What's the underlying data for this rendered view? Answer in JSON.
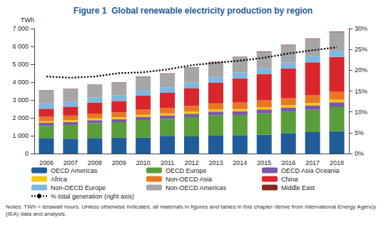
{
  "chart_data": {
    "type": "bar",
    "stacked": true,
    "title": "Figure 1  Global renewable electricity production by region",
    "y_label": "TWh",
    "notes": "Notes: TWh = terawatt hours. Unless otherwise indicated, all materials in figures and tables in this chapter derive from International Energy Agency (IEA) data and analysis.",
    "categories": [
      "2006",
      "2007",
      "2008",
      "2009",
      "2010",
      "2011",
      "2012",
      "2013",
      "2014",
      "2015",
      "2016",
      "2017",
      "2018"
    ],
    "series": [
      {
        "name": "OECD Americas",
        "color": "#1f5c99",
        "values": [
          870,
          830,
          870,
          900,
          890,
          990,
          960,
          1000,
          1030,
          1050,
          1150,
          1200,
          1250
        ]
      },
      {
        "name": "OECD Europe",
        "color": "#5a9e3a",
        "values": [
          680,
          770,
          830,
          860,
          990,
          960,
          1080,
          1150,
          1130,
          1200,
          1200,
          1250,
          1350
        ]
      },
      {
        "name": "OECD Asia Oceania",
        "color": "#7a5aa6",
        "values": [
          170,
          170,
          170,
          170,
          180,
          190,
          190,
          200,
          210,
          220,
          230,
          250,
          270
        ]
      },
      {
        "name": "Africa",
        "color": "#f5c518",
        "values": [
          90,
          95,
          100,
          105,
          110,
          110,
          115,
          120,
          125,
          130,
          135,
          140,
          145
        ]
      },
      {
        "name": "Non-OECD Asia",
        "color": "#e87722",
        "values": [
          250,
          260,
          270,
          280,
          290,
          300,
          320,
          340,
          360,
          380,
          400,
          420,
          450
        ]
      },
      {
        "name": "China",
        "color": "#d9262a",
        "values": [
          450,
          500,
          600,
          630,
          780,
          850,
          1000,
          1150,
          1350,
          1480,
          1650,
          1850,
          1950
        ]
      },
      {
        "name": "Non-OECD Europe",
        "color": "#7db8e0",
        "values": [
          300,
          290,
          300,
          310,
          320,
          310,
          320,
          330,
          330,
          330,
          340,
          340,
          350
        ]
      },
      {
        "name": "Non-OECD Americas",
        "color": "#a6a6a6",
        "values": [
          720,
          690,
          700,
          720,
          730,
          760,
          820,
          820,
          860,
          900,
          960,
          970,
          1030
        ]
      },
      {
        "name": "Middle East",
        "color": "#8b2a1a",
        "values": [
          20,
          20,
          20,
          20,
          25,
          25,
          25,
          25,
          25,
          30,
          30,
          30,
          35
        ]
      },
      {
        "name": "% total generation (right axis)",
        "type": "line",
        "axis": "y2",
        "color": "#000000",
        "line_style": "dotted",
        "values": [
          18.5,
          18.2,
          18.5,
          19.3,
          19.5,
          20.2,
          21.2,
          21.8,
          22.3,
          23.0,
          24.0,
          24.8,
          25.5
        ]
      }
    ],
    "ylim": [
      0,
      7000
    ],
    "yticks": [
      0,
      {
        "value": 1000,
        "label": "1 000"
      },
      {
        "value": 2000,
        "label": "2 000"
      },
      {
        "value": 3000,
        "label": "3 000"
      },
      {
        "value": 4000,
        "label": "4 000"
      },
      {
        "value": 5000,
        "label": "5 000"
      },
      {
        "value": 6000,
        "label": "6 000"
      },
      {
        "value": 7000,
        "label": "7 000"
      }
    ],
    "y2lim": [
      0,
      30
    ],
    "y2ticks": [
      {
        "value": 0,
        "label": "0%"
      },
      {
        "value": 5,
        "label": "5%"
      },
      {
        "value": 10,
        "label": "10%"
      },
      {
        "value": 15,
        "label": "15%"
      },
      {
        "value": 20,
        "label": "20%"
      },
      {
        "value": 25,
        "label": "25%"
      },
      {
        "value": 30,
        "label": "30%"
      }
    ],
    "grid": false,
    "legend": "bottom"
  }
}
